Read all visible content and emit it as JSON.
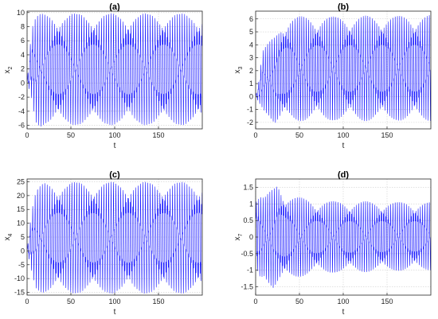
{
  "chart_data": [
    {
      "type": "line",
      "title": "(a)",
      "xlabel": "t",
      "ylabel": "x",
      "ylabel_sub": "2",
      "xlim": [
        0,
        200
      ],
      "ylim": [
        -6.5,
        10.2
      ],
      "xticks": [
        0,
        50,
        100,
        150
      ],
      "yticks": [
        -6,
        -4,
        -2,
        0,
        2,
        4,
        6,
        8,
        10
      ],
      "grid": true,
      "series": [
        {
          "color": "#0000ff",
          "envelope_t": [
            0,
            5,
            10,
            15,
            20,
            30,
            200
          ],
          "upper": [
            0,
            8.0,
            9.6,
            9.8,
            9.9,
            9.9,
            9.9
          ],
          "lower": [
            0,
            -2.5,
            -5.8,
            -6.2,
            -6.0,
            -6.0,
            -6.0
          ],
          "period": 2.8
        }
      ]
    },
    {
      "type": "line",
      "title": "(b)",
      "xlabel": "t",
      "ylabel": "x",
      "ylabel_sub": "3",
      "xlim": [
        0,
        200
      ],
      "ylim": [
        -2.5,
        6.6
      ],
      "xticks": [
        0,
        50,
        100,
        150
      ],
      "yticks": [
        -2,
        -1,
        0,
        1,
        2,
        3,
        4,
        5,
        6
      ],
      "grid": true,
      "series": [
        {
          "color": "#0000ff",
          "envelope_t": [
            0,
            3,
            8,
            15,
            22,
            30,
            40,
            200
          ],
          "upper": [
            0,
            1.0,
            3.6,
            4.2,
            4.8,
            5.8,
            6.2,
            6.3
          ],
          "lower": [
            0,
            -0.5,
            -1.0,
            -1.5,
            -2.3,
            -2.0,
            -1.9,
            -1.9
          ],
          "period": 2.6
        }
      ]
    },
    {
      "type": "line",
      "title": "(c)",
      "xlabel": "t",
      "ylabel": "x",
      "ylabel_sub": "4",
      "xlim": [
        0,
        200
      ],
      "ylim": [
        -16,
        26
      ],
      "xticks": [
        0,
        50,
        100,
        150
      ],
      "yticks": [
        -15,
        -10,
        -5,
        0,
        5,
        10,
        15,
        20,
        25
      ],
      "grid": true,
      "series": [
        {
          "color": "#0000ff",
          "envelope_t": [
            0,
            5,
            10,
            20,
            30,
            200
          ],
          "upper": [
            0,
            15,
            22,
            25,
            25,
            25
          ],
          "lower": [
            0,
            -8,
            -14,
            -15.5,
            -15.5,
            -15.5
          ],
          "period": 2.8
        }
      ]
    },
    {
      "type": "line",
      "title": "(d)",
      "xlabel": "t",
      "ylabel": "x",
      "ylabel_sub": "7",
      "xlim": [
        0,
        200
      ],
      "ylim": [
        -1.75,
        1.75
      ],
      "xticks": [
        0,
        50,
        100,
        150
      ],
      "yticks": [
        -1.5,
        -1,
        -0.5,
        0,
        0.5,
        1,
        1.5
      ],
      "grid": true,
      "series": [
        {
          "color": "#0000ff",
          "envelope_t": [
            0,
            5,
            10,
            20,
            25,
            35,
            50,
            70,
            200
          ],
          "upper": [
            1.25,
            1.3,
            1.2,
            1.5,
            1.7,
            1.3,
            1.2,
            1.1,
            1.05
          ],
          "lower": [
            -1.1,
            -1.3,
            -1.2,
            -1.6,
            -1.5,
            -1.3,
            -1.2,
            -1.1,
            -1.0
          ],
          "period": 2.6
        }
      ]
    }
  ]
}
